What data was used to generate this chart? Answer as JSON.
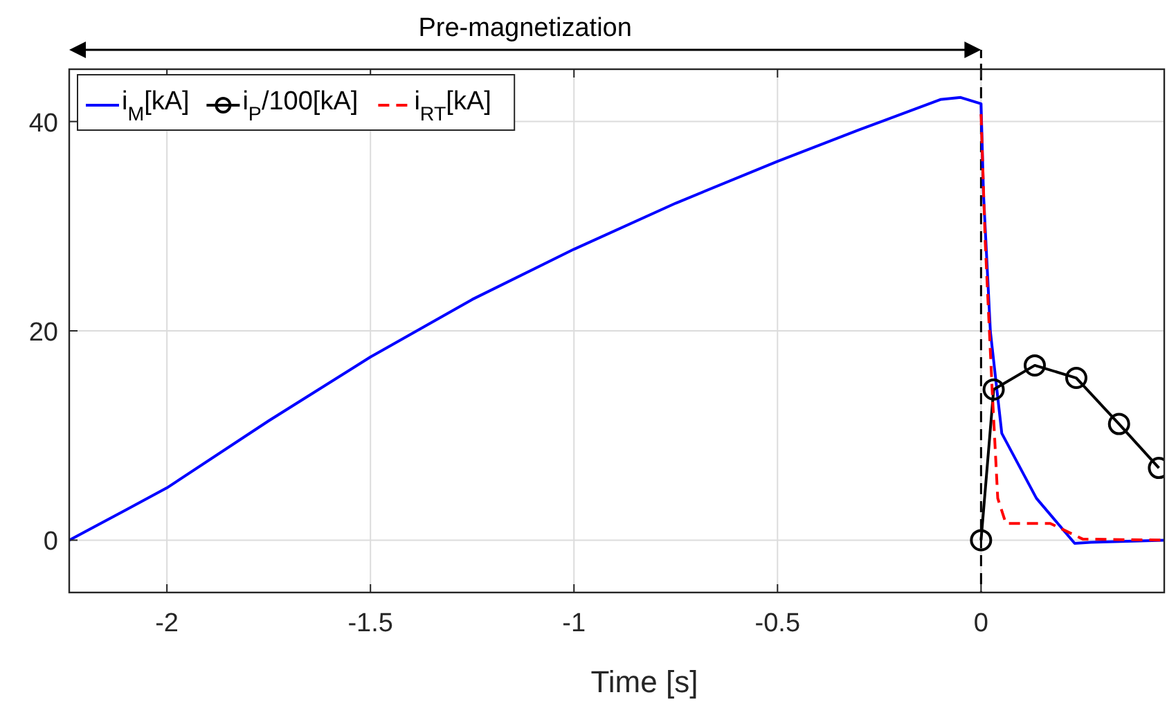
{
  "chart_data": {
    "type": "line",
    "xlabel": "Time [s]",
    "annotations": [
      "Pre-magnetization"
    ],
    "xlim": [
      -2.24,
      0.45
    ],
    "ylim": [
      -5,
      45
    ],
    "xticks": [
      -2,
      -1.5,
      -1,
      -0.5,
      0
    ],
    "yticks": [
      0,
      20,
      40
    ],
    "grid": true,
    "legend": "top left",
    "ref_lines": [
      {
        "axis": "x",
        "value": 0,
        "color": "#000000",
        "line_style": "dashed"
      }
    ],
    "series": [
      {
        "name": "i$_{M}$[kA]",
        "color": "#0000ff",
        "marker": "none",
        "line_style": "solid",
        "x": [
          -2.24,
          -2.1,
          -2,
          -1.75,
          -1.5,
          -1.25,
          -1,
          -0.75,
          -0.5,
          -0.3,
          -0.1,
          -0.05,
          0,
          0.006,
          0.023,
          0.051,
          0.136,
          0.23,
          0.27,
          0.45
        ],
        "values": [
          0,
          2.9,
          5,
          11.4,
          17.5,
          23,
          27.8,
          32.2,
          36.2,
          39.2,
          42.1,
          42.3,
          41.7,
          33.1,
          19.9,
          10.2,
          4,
          -0.3,
          -0.2,
          0
        ]
      },
      {
        "name": "i$_{P}$/100[kA]",
        "color": "#000000",
        "marker": "circle",
        "line_style": "solid",
        "x": [
          0,
          0.031,
          0.132,
          0.234,
          0.339,
          0.437
        ],
        "values": [
          0,
          14.4,
          16.7,
          15.5,
          11.1,
          6.9
        ]
      },
      {
        "name": "i$_{RT}$[kA]",
        "color": "#ff0000",
        "marker": "none",
        "line_style": "dashed",
        "x": [
          0,
          0.01,
          0.027,
          0.041,
          0.061,
          0.17,
          0.25,
          0.45
        ],
        "values": [
          40.7,
          28.7,
          14.6,
          4,
          1.6,
          1.6,
          0.1,
          0
        ]
      }
    ]
  }
}
